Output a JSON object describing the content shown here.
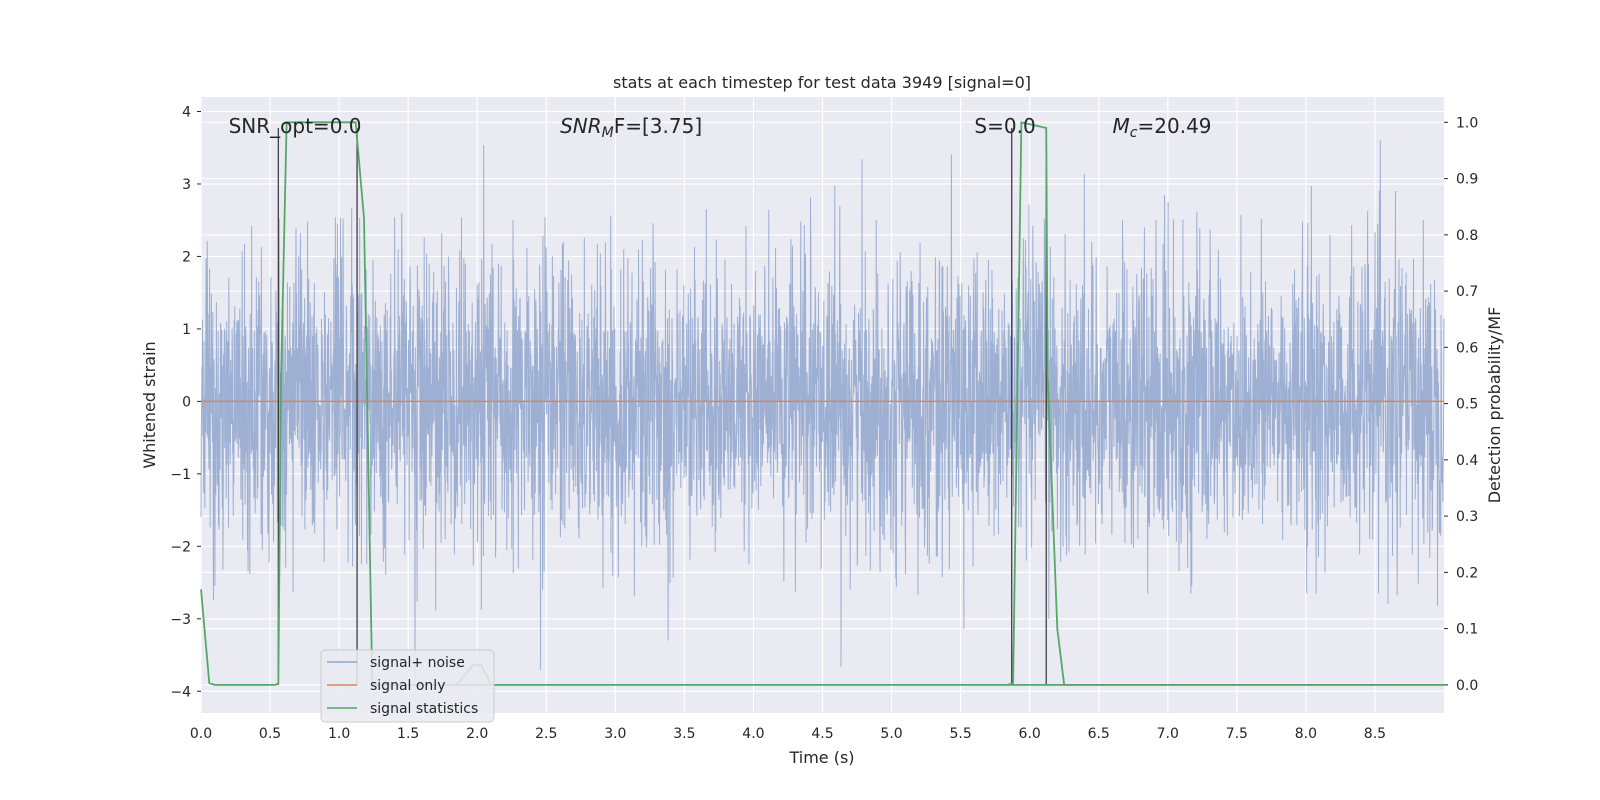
{
  "chart_data": {
    "type": "line",
    "title": "stats at each timestep for test data 3949 [signal=0]",
    "xlabel": "Time (s)",
    "ylabel": "Whitened strain",
    "ylabel_right": "Detection probability/MF",
    "xlim": [
      0,
      9
    ],
    "ylim": [
      -4.3,
      4.2
    ],
    "ylim_right": [
      -0.05,
      1.045
    ],
    "xticks": [
      "0.0",
      "0.5",
      "1.0",
      "1.5",
      "2.0",
      "2.5",
      "3.0",
      "3.5",
      "4.0",
      "4.5",
      "5.0",
      "5.5",
      "6.0",
      "6.5",
      "7.0",
      "7.5",
      "8.0",
      "8.5"
    ],
    "yticks": [
      "4",
      "3",
      "2",
      "1",
      "0",
      "−1",
      "−2",
      "−3",
      "−4"
    ],
    "yticks_right": [
      "1.0",
      "0.9",
      "0.8",
      "0.7",
      "0.6",
      "0.5",
      "0.4",
      "0.3",
      "0.2",
      "0.1",
      "0.0"
    ],
    "grid": true,
    "legend_position": "lower-left",
    "annotations": [
      {
        "text": "SNR_opt=0.0",
        "x": 0.2,
        "y": 3.8
      },
      {
        "text": "SNR_MF=[3.75]",
        "x": 2.6,
        "y": 3.8,
        "main": "SNR",
        "sub": "M",
        "tail": "F=[3.75]"
      },
      {
        "text": "S=0.0",
        "x": 5.6,
        "y": 3.8
      },
      {
        "text": "M_c=20.49",
        "x": 6.6,
        "y": 3.8,
        "main": "M",
        "sub": "c",
        "tail": "=20.49"
      }
    ],
    "vlines": [
      {
        "x": 0.56,
        "ymin": 0.0,
        "ymax": 0.99
      },
      {
        "x": 1.13,
        "ymin": 0.0,
        "ymax": 0.99
      },
      {
        "x": 5.87,
        "ymin": 0.0,
        "ymax": 0.99
      },
      {
        "x": 6.12,
        "ymin": 0.0,
        "ymax": 0.99
      }
    ],
    "series": [
      {
        "name": "signal+ noise",
        "color": "#8fa5cd",
        "kind": "noise",
        "envelope_sigma": 1.0,
        "peak_max": 3.6,
        "peak_min": -3.9
      },
      {
        "name": "signal only",
        "color": "#dd8452",
        "kind": "flat",
        "x": [
          0,
          9
        ],
        "y": [
          0,
          0
        ]
      },
      {
        "name": "signal statistics",
        "color": "#55a868",
        "axis": "right",
        "x": [
          0,
          0.06,
          0.1,
          0.54,
          0.56,
          0.58,
          0.62,
          1.12,
          1.18,
          1.24,
          1.26,
          9
        ],
        "y": [
          0.17,
          0.003,
          0.0,
          0.0,
          0.003,
          0.55,
          1.0,
          1.0,
          0.83,
          0.0,
          0.0,
          0.0
        ],
        "segments": [
          {
            "x": [
              5.84,
              5.88,
              5.94,
              6.12,
              6.13,
              6.2,
              6.25,
              8.99
            ],
            "y": [
              0.0,
              0.003,
              1.0,
              0.99,
              0.55,
              0.1,
              0.0,
              0.0
            ]
          }
        ],
        "bump": {
          "x": [
            1.85,
            1.97,
            2.03,
            2.1
          ],
          "y": [
            0.0,
            0.035,
            0.035,
            0.0
          ]
        }
      }
    ]
  }
}
